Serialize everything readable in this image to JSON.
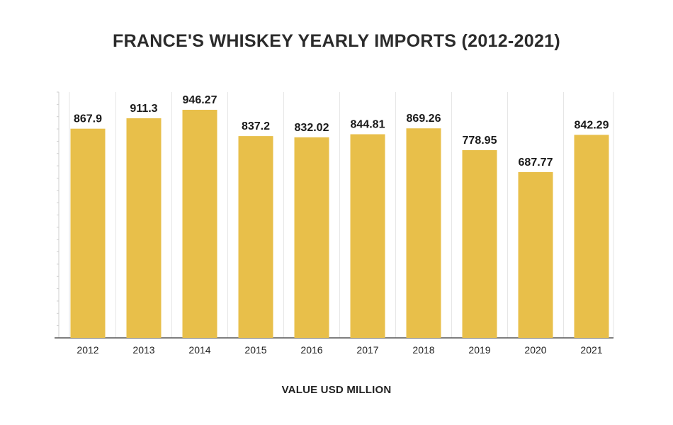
{
  "chart_data": {
    "type": "bar",
    "title": "FRANCE'S WHISKEY YEARLY IMPORTS (2012-2021)",
    "xlabel": "VALUE USD MILLION",
    "ylabel": "",
    "categories": [
      "2012",
      "2013",
      "2014",
      "2015",
      "2016",
      "2017",
      "2018",
      "2019",
      "2020",
      "2021"
    ],
    "values": [
      867.9,
      911.3,
      946.27,
      837.2,
      832.02,
      844.81,
      869.26,
      778.95,
      687.77,
      842.29
    ],
    "value_labels": [
      "867.9",
      "911.3",
      "946.27",
      "837.2",
      "832.02",
      "844.81",
      "869.26",
      "778.95",
      "687.77",
      "842.29"
    ],
    "ylim": [
      0,
      1000
    ],
    "grid": "vertical",
    "legend": "none",
    "colors": {
      "bar": "#E8BF4A",
      "grid": "#e6e6e6",
      "axis": "#555555",
      "text": "#222222"
    }
  }
}
